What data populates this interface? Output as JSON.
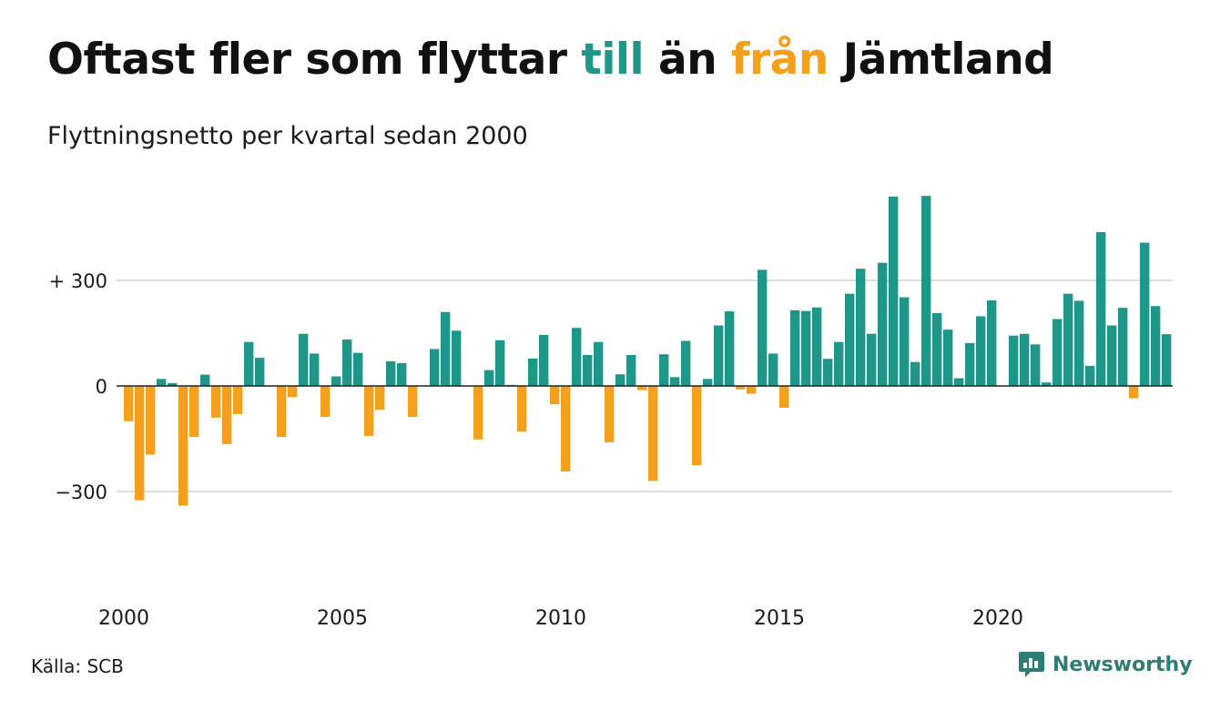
{
  "header": {
    "title_part1": "Oftast fler som flyttar ",
    "title_pos": "till",
    "title_part2": " än ",
    "title_neg": "från",
    "title_part3": " Jämtland",
    "subtitle": "Flyttningsnetto per kvartal sedan 2000"
  },
  "footer": {
    "source": "Källa: SCB",
    "brand": "Newsworthy"
  },
  "colors": {
    "positive": "#1e9688",
    "negative": "#f5a01d",
    "grid": "#dddddd",
    "zero_line": "#222222",
    "brand": "#2d7d74"
  },
  "icons": {
    "brand_logo": "bar-chart-speech-bubble-icon"
  },
  "chart_data": {
    "type": "bar",
    "title": "Oftast fler som flyttar till än från Jämtland",
    "subtitle": "Flyttningsnetto per kvartal sedan 2000",
    "xlabel": "",
    "ylabel": "",
    "start_year": 2000,
    "quarters_per_year": 4,
    "ylim": [
      -580,
      600
    ],
    "y_ticks": [
      {
        "value": 300,
        "label": "+ 300"
      },
      {
        "value": 0,
        "label": "0"
      },
      {
        "value": -300,
        "label": "−300"
      }
    ],
    "x_ticks": [
      {
        "year": 2000,
        "label": "2000"
      },
      {
        "year": 2005,
        "label": "2005"
      },
      {
        "year": 2010,
        "label": "2010"
      },
      {
        "year": 2015,
        "label": "2015"
      },
      {
        "year": 2020,
        "label": "2020"
      }
    ],
    "grid": true,
    "values": [
      -100,
      -325,
      -195,
      20,
      8,
      -340,
      -145,
      32,
      -90,
      -165,
      -80,
      125,
      80,
      0,
      -145,
      -32,
      148,
      92,
      -88,
      27,
      132,
      94,
      -142,
      -68,
      70,
      65,
      -88,
      0,
      105,
      210,
      157,
      0,
      -152,
      45,
      130,
      3,
      -130,
      78,
      145,
      -52,
      -243,
      165,
      88,
      125,
      -160,
      33,
      88,
      -12,
      -270,
      90,
      25,
      128,
      -225,
      20,
      172,
      212,
      -10,
      -22,
      330,
      92,
      -62,
      215,
      213,
      223,
      77,
      125,
      262,
      333,
      148,
      350,
      538,
      252,
      68,
      540,
      207,
      160,
      22,
      122,
      198,
      243,
      0,
      143,
      148,
      118,
      10,
      190,
      262,
      242,
      57,
      437,
      172,
      222,
      -35,
      407,
      227,
      147
    ]
  }
}
